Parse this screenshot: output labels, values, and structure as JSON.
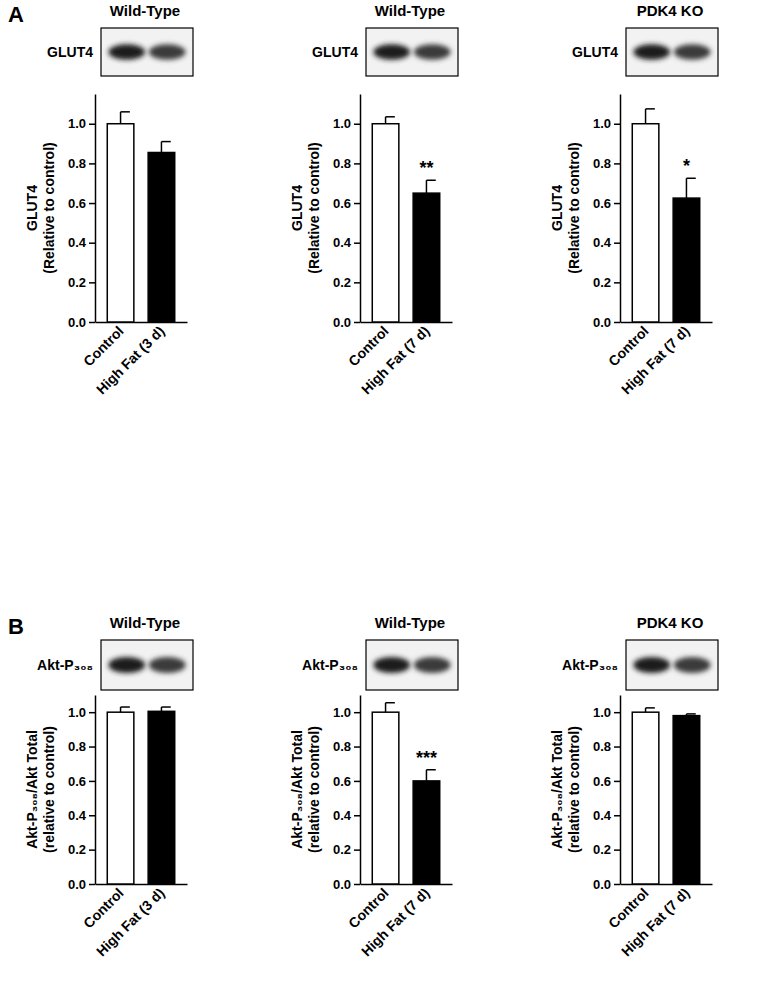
{
  "chart_data": [
    {
      "type": "bar",
      "panel": "A",
      "title": "Wild-Type",
      "blot_label": "GLUT4",
      "y_label": [
        "GLUT4",
        "(Relative to control)"
      ],
      "categories": [
        "Control",
        "High Fat (3 d)"
      ],
      "values": [
        1.0,
        0.855
      ],
      "errors": [
        0.06,
        0.055
      ],
      "significance": [
        null,
        null
      ],
      "colors": [
        "#ffffff",
        "#000000"
      ],
      "ylim": [
        0,
        1.15
      ],
      "yticks": [
        {
          "value": 0,
          "label": "0.0"
        },
        0.2,
        0.4,
        0.6,
        0.8,
        {
          "value": 1,
          "label": "1.0"
        }
      ]
    },
    {
      "type": "bar",
      "title": "Wild-Type",
      "blot_label": "GLUT4",
      "y_label": [
        "GLUT4",
        "(Relative to control)"
      ],
      "categories": [
        "Control",
        "High Fat (7 d)"
      ],
      "values": [
        1.0,
        0.65
      ],
      "errors": [
        0.035,
        0.065
      ],
      "significance": [
        null,
        "**"
      ],
      "colors": [
        "#ffffff",
        "#000000"
      ],
      "ylim": [
        0,
        1.15
      ],
      "yticks": [
        {
          "value": 0,
          "label": "0.0"
        },
        0.2,
        0.4,
        0.6,
        0.8,
        {
          "value": 1,
          "label": "1.0"
        }
      ]
    },
    {
      "type": "bar",
      "title": "PDK4 KO",
      "blot_label": "GLUT4",
      "y_label": [
        "GLUT4",
        "(Relative to control)"
      ],
      "categories": [
        "Control",
        "High Fat (7 d)"
      ],
      "values": [
        1.0,
        0.625
      ],
      "errors": [
        0.075,
        0.1
      ],
      "significance": [
        null,
        "*"
      ],
      "colors": [
        "#ffffff",
        "#000000"
      ],
      "ylim": [
        0,
        1.15
      ],
      "yticks": [
        {
          "value": 0,
          "label": "0.0"
        },
        0.2,
        0.4,
        0.6,
        0.8,
        {
          "value": 1,
          "label": "1.0"
        }
      ]
    },
    {
      "type": "bar",
      "panel": "B",
      "title": "Wild-Type",
      "blot_label": "Akt-P₃₀₈",
      "y_label": [
        "Akt-P₃₀₈/Akt Total",
        "(relative to control)"
      ],
      "categories": [
        "Control",
        "High Fat (3 d)"
      ],
      "values": [
        1.0,
        1.005
      ],
      "errors": [
        0.03,
        0.025
      ],
      "significance": [
        null,
        null
      ],
      "colors": [
        "#ffffff",
        "#000000"
      ],
      "ylim": [
        0,
        1.1
      ],
      "yticks": [
        {
          "value": 0,
          "label": "0.0"
        },
        0.2,
        0.4,
        0.6,
        0.8,
        {
          "value": 1,
          "label": "1.0"
        }
      ]
    },
    {
      "type": "bar",
      "title": "Wild-Type",
      "blot_label": "Akt-P₃₀₈",
      "y_label": [
        "Akt-P₃₀₈/Akt Total",
        "(relative to control)"
      ],
      "categories": [
        "Control",
        "High Fat (7 d)"
      ],
      "values": [
        1.0,
        0.6
      ],
      "errors": [
        0.055,
        0.065
      ],
      "significance": [
        null,
        "***"
      ],
      "colors": [
        "#ffffff",
        "#000000"
      ],
      "ylim": [
        0,
        1.1
      ],
      "yticks": [
        {
          "value": 0,
          "label": "0.0"
        },
        0.2,
        0.4,
        0.6,
        0.8,
        {
          "value": 1,
          "label": "1.0"
        }
      ]
    },
    {
      "type": "bar",
      "title": "PDK4 KO",
      "blot_label": "Akt-P₃₀₈",
      "y_label": [
        "Akt-P₃₀₈/Akt Total",
        "(relative to control)"
      ],
      "categories": [
        "Control",
        "High Fat (7 d)"
      ],
      "values": [
        1.0,
        0.98
      ],
      "errors": [
        0.025,
        0.01
      ],
      "significance": [
        null,
        null
      ],
      "colors": [
        "#ffffff",
        "#000000"
      ],
      "ylim": [
        0,
        1.1
      ],
      "yticks": [
        {
          "value": 0,
          "label": "0.0"
        },
        0.2,
        0.4,
        0.6,
        0.8,
        {
          "value": 1,
          "label": "1.0"
        }
      ]
    }
  ]
}
